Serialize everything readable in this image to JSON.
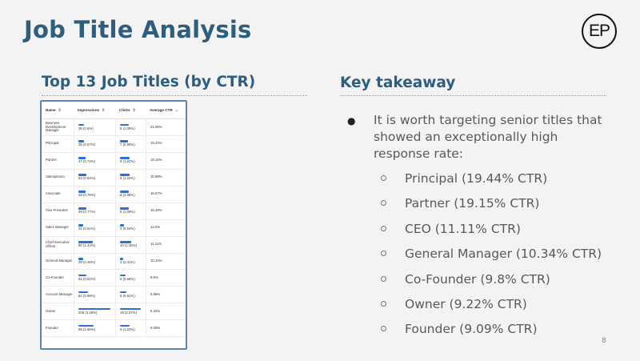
{
  "slide": {
    "title": "Job Title Analysis",
    "logo_text": "EP",
    "page_number": "8"
  },
  "left": {
    "heading": "Top 13 Job Titles (by CTR)",
    "table": {
      "columns": [
        "Name",
        "Impressions",
        "Clicks",
        "Average CTR"
      ],
      "rows": [
        {
          "name": "Business Development Manager",
          "impressions": "38 (0.6%)",
          "imp_bar": 0.18,
          "clicks": "8 (1.08%)",
          "click_bar": 0.42,
          "ctr": "21.05%"
        },
        {
          "name": "Principal",
          "impressions": "36 (0.57%)",
          "imp_bar": 0.17,
          "clicks": "7 (0.95%)",
          "click_bar": 0.37,
          "ctr": "19.44%"
        },
        {
          "name": "Partner",
          "impressions": "47 (0.74%)",
          "imp_bar": 0.23,
          "clicks": "9 (1.22%)",
          "click_bar": 0.47,
          "ctr": "19.15%"
        },
        {
          "name": "Salesperson",
          "impressions": "53 (0.84%)",
          "imp_bar": 0.26,
          "clicks": "9 (1.22%)",
          "click_bar": 0.47,
          "ctr": "16.98%"
        },
        {
          "name": "Associate",
          "impressions": "48 (0.76%)",
          "imp_bar": 0.23,
          "clicks": "8 (1.08%)",
          "click_bar": 0.42,
          "ctr": "16.67%"
        },
        {
          "name": "Vice President",
          "impressions": "49 (0.77%)",
          "imp_bar": 0.24,
          "clicks": "8 (1.08%)",
          "click_bar": 0.42,
          "ctr": "16.33%"
        },
        {
          "name": "Sales Manager",
          "impressions": "32 (0.51%)",
          "imp_bar": 0.16,
          "clicks": "4 (0.54%)",
          "click_bar": 0.21,
          "ctr": "12.5%"
        },
        {
          "name": "Chief Executive Officer",
          "impressions": "90 (1.42%)",
          "imp_bar": 0.44,
          "clicks": "10 (1.35%)",
          "click_bar": 0.53,
          "ctr": "11.11%"
        },
        {
          "name": "General Manager",
          "impressions": "29 (0.46%)",
          "imp_bar": 0.14,
          "clicks": "3 (0.41%)",
          "click_bar": 0.16,
          "ctr": "10.34%"
        },
        {
          "name": "Co-Founder",
          "impressions": "51 (0.81%)",
          "imp_bar": 0.25,
          "clicks": "5 (0.68%)",
          "click_bar": 0.26,
          "ctr": "9.8%"
        },
        {
          "name": "Account Manager",
          "impressions": "62 (0.98%)",
          "imp_bar": 0.3,
          "clicks": "6 (0.81%)",
          "click_bar": 0.32,
          "ctr": "9.68%"
        },
        {
          "name": "Owner",
          "impressions": "206 (3.26%)",
          "imp_bar": 1.0,
          "clicks": "19 (2.57%)",
          "click_bar": 1.0,
          "ctr": "9.22%"
        },
        {
          "name": "Founder",
          "impressions": "99 (1.56%)",
          "imp_bar": 0.48,
          "clicks": "9 (1.22%)",
          "click_bar": 0.47,
          "ctr": "9.09%"
        }
      ]
    }
  },
  "right": {
    "heading": "Key takeaway",
    "main_point": "It is worth targeting senior titles that showed an exceptionally high response rate:",
    "sub_points": [
      "Principal (19.44% CTR)",
      "Partner (19.15% CTR)",
      "CEO (11.11% CTR)",
      "General Manager (10.34% CTR)",
      "Co-Founder (9.8% CTR)",
      "Owner (9.22% CTR)",
      "Founder (9.09% CTR)"
    ]
  },
  "colors": {
    "title": "#2e5e7e",
    "bar": "#2f6fd1",
    "panel_border": "#5b86b3",
    "background": "#f3f3f3"
  }
}
